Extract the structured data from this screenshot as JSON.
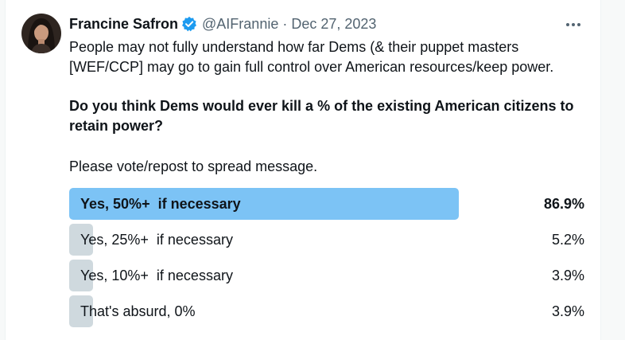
{
  "tweet": {
    "author_name": "Francine Safron",
    "handle": "@AIFrannie",
    "separator": "·",
    "date": "Dec 27, 2023",
    "text_intro": "People may not fully understand how far Dems (& their puppet masters [WEF/CCP] may go to gain full control over American resources/keep power.",
    "text_question": "Do you think Dems would ever kill a % of the existing American citizens to retain power?",
    "text_cta": "Please vote/repost to spread message."
  },
  "poll": {
    "options": [
      {
        "label": "Yes, 50%+  if necessary",
        "percent_label": "86.9%",
        "percent": 86.9,
        "winner": true
      },
      {
        "label": "Yes, 25%+  if necessary",
        "percent_label": "5.2%",
        "percent": 5.2,
        "winner": false
      },
      {
        "label": "Yes, 10%+  if necessary",
        "percent_label": "3.9%",
        "percent": 3.9,
        "winner": false
      },
      {
        "label": "That's absurd, 0%",
        "percent_label": "3.9%",
        "percent": 3.9,
        "winner": false
      }
    ]
  },
  "icons": {
    "verified": "verified-badge-icon",
    "more": "more-options-icon"
  },
  "colors": {
    "winner_bar": "#7cc3f5",
    "other_bar": "#cfd9de",
    "verified": "#1d9bf0",
    "secondary_text": "#536471"
  }
}
